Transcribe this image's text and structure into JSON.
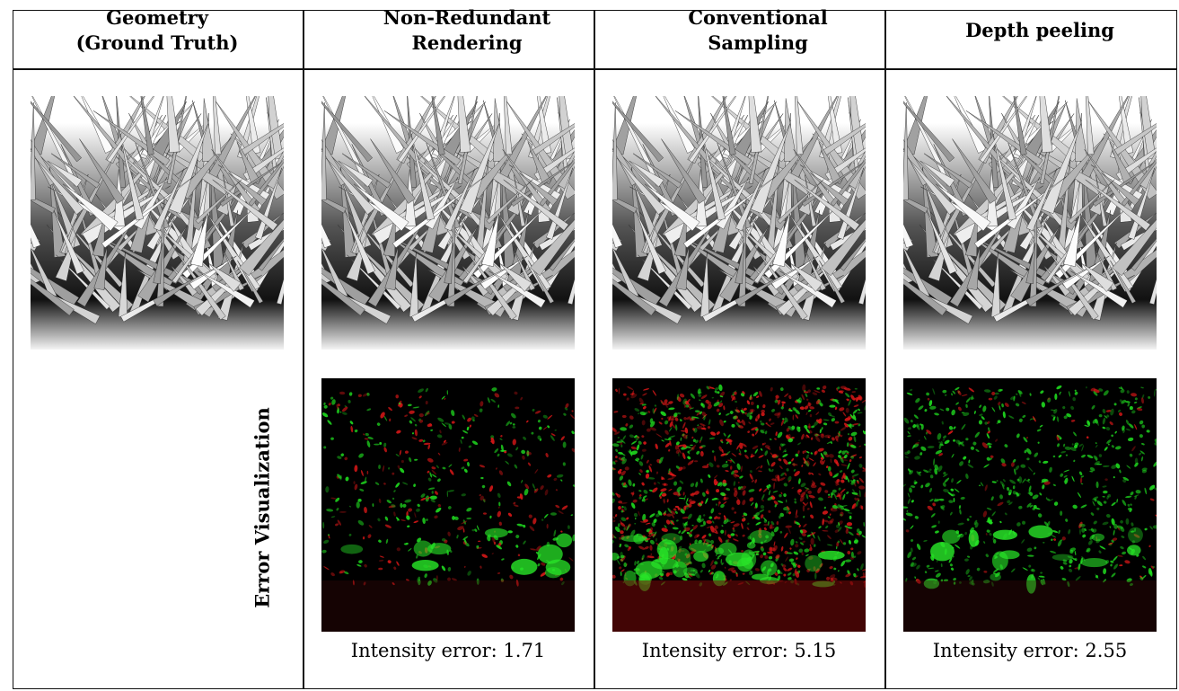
{
  "headers": {
    "geometry": [
      "Geometry",
      "(Ground Truth)"
    ],
    "nonredundant": [
      "Non-Redundant",
      "Rendering"
    ],
    "conventional": [
      "Conventional",
      "Sampling"
    ],
    "depthpeeling": [
      "Depth peeling"
    ]
  },
  "row_label": "Error Visualization",
  "captions": {
    "nonredundant": "Intensity error: 1.71",
    "conventional": "Intensity error: 5.15",
    "depthpeeling": "Intensity error: 2.55"
  },
  "colors": {
    "border": "#111111",
    "error_positive": "#20e020",
    "error_negative": "#e01818",
    "background_dark": "#000000"
  },
  "images": {
    "render": "grass-render",
    "error": "error-visualization"
  }
}
